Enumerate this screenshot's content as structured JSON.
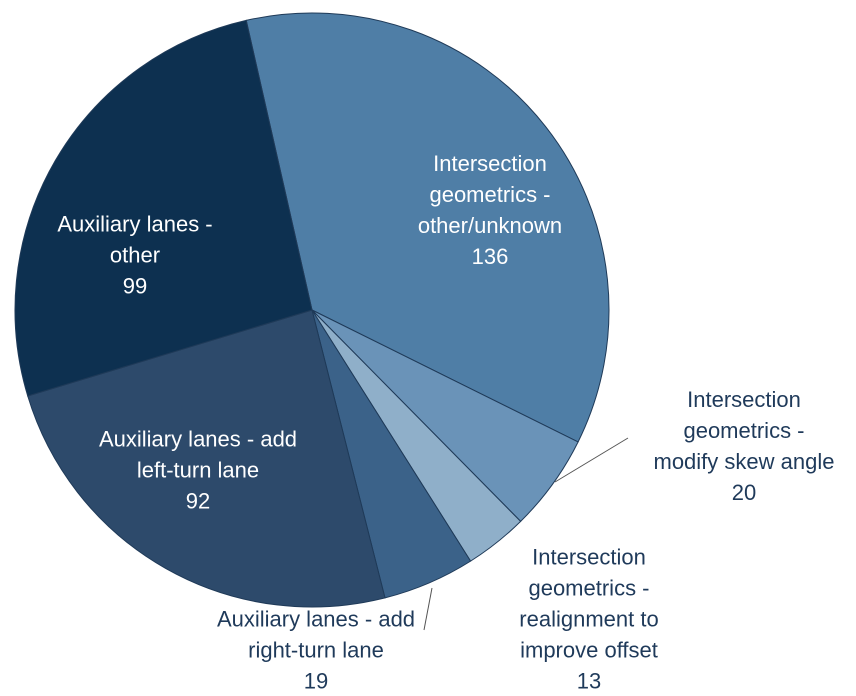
{
  "chart_data": {
    "type": "pie",
    "categories": [
      "Intersection geometrics - other/unknown",
      "Intersection geometrics - modify skew angle",
      "Intersection geometrics - realignment to improve offset",
      "Auxiliary lanes - add right-turn lane",
      "Auxiliary lanes - add left-turn lane",
      "Auxiliary lanes - other"
    ],
    "values": [
      136,
      20,
      13,
      19,
      92,
      99
    ],
    "colors": [
      "#4f7ea6",
      "#6a93b8",
      "#8fafc9",
      "#3b6289",
      "#2d4a6b",
      "#0d3050"
    ]
  }
}
